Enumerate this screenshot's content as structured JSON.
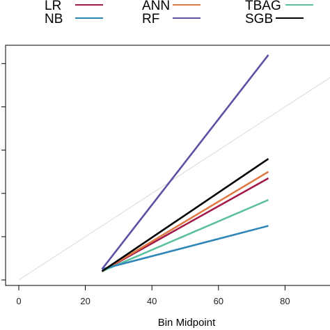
{
  "chart_data": {
    "type": "line",
    "xlabel": "Bin Midpoint",
    "ylabel": "",
    "xlim": [
      -5,
      95
    ],
    "ylim": [
      -5,
      105
    ],
    "x_ticks": [
      "0",
      "20",
      "40",
      "60",
      "80"
    ],
    "x_tick_values": [
      0,
      20,
      40,
      60,
      80
    ],
    "y_tick_values": [
      0,
      20,
      40,
      60,
      80,
      100
    ],
    "grid": false,
    "legend_position": "top",
    "reference_line": {
      "x": [
        0,
        100
      ],
      "y": [
        0,
        100
      ],
      "color": "#d9d9d9"
    },
    "series": [
      {
        "name": "LR",
        "color": "#a11a4a",
        "x": [
          25,
          75
        ],
        "y": [
          4,
          47
        ]
      },
      {
        "name": "ANN",
        "color": "#e07a44",
        "x": [
          25,
          75
        ],
        "y": [
          4,
          50
        ]
      },
      {
        "name": "TBAG",
        "color": "#5cc0a0",
        "x": [
          25,
          75
        ],
        "y": [
          4,
          37
        ]
      },
      {
        "name": "NB",
        "color": "#2f86b8",
        "x": [
          25,
          75
        ],
        "y": [
          5,
          25
        ]
      },
      {
        "name": "RF",
        "color": "#5e4fa2",
        "x": [
          25,
          75
        ],
        "y": [
          5,
          104
        ]
      },
      {
        "name": "SGB",
        "color": "#000000",
        "x": [
          25,
          75
        ],
        "y": [
          4,
          56
        ]
      }
    ]
  }
}
